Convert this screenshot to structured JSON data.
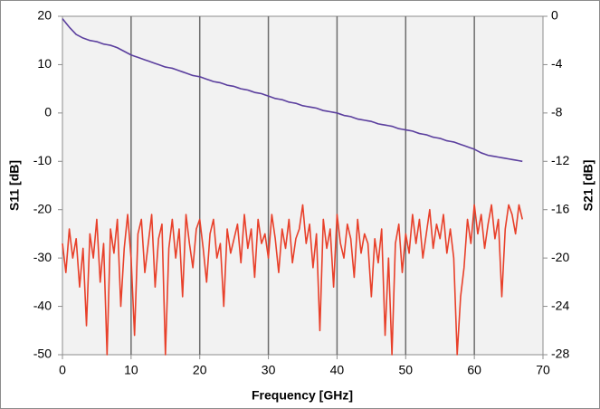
{
  "chart_data": {
    "type": "line",
    "xlabel": "Frequency [GHz]",
    "ylabel": "S11 [dB]",
    "y2label": "S21 [dB]",
    "x": [
      0,
      0.5,
      1,
      1.5,
      2,
      2.5,
      3,
      3.5,
      4,
      4.5,
      5,
      5.5,
      6,
      6.5,
      7,
      7.5,
      8,
      8.5,
      9,
      9.5,
      10,
      10.5,
      11,
      11.5,
      12,
      12.5,
      13,
      13.5,
      14,
      14.5,
      15,
      15.5,
      16,
      16.5,
      17,
      17.5,
      18,
      18.5,
      19,
      19.5,
      20,
      20.5,
      21,
      21.5,
      22,
      22.5,
      23,
      23.5,
      24,
      24.5,
      25,
      25.5,
      26,
      26.5,
      27,
      27.5,
      28,
      28.5,
      29,
      29.5,
      30,
      30.5,
      31,
      31.5,
      32,
      32.5,
      33,
      33.5,
      34,
      34.5,
      35,
      35.5,
      36,
      36.5,
      37,
      37.5,
      38,
      38.5,
      39,
      39.5,
      40,
      40.5,
      41,
      41.5,
      42,
      42.5,
      43,
      43.5,
      44,
      44.5,
      45,
      45.5,
      46,
      46.5,
      47,
      47.5,
      48,
      48.5,
      49,
      49.5,
      50,
      50.5,
      51,
      51.5,
      52,
      52.5,
      53,
      53.5,
      54,
      54.5,
      55,
      55.5,
      56,
      56.5,
      57,
      57.5,
      58,
      58.5,
      59,
      59.5,
      60,
      60.5,
      61,
      61.5,
      62,
      62.5,
      63,
      63.5,
      64,
      64.5,
      65,
      65.5,
      66,
      66.5,
      67
    ],
    "series": [
      {
        "name": "S11",
        "color": "#e8402a",
        "axis": "y",
        "values": [
          -27,
          -33,
          -24,
          -30,
          -26,
          -36,
          -28,
          -44,
          -25,
          -30,
          -22,
          -35,
          -27,
          -50,
          -24,
          -29,
          -22,
          -40,
          -28,
          -21,
          -30,
          -46,
          -25,
          -22,
          -33,
          -27,
          -21,
          -36,
          -26,
          -23,
          -50,
          -28,
          -22,
          -30,
          -24,
          -38,
          -21,
          -27,
          -32,
          -24,
          -22,
          -28,
          -35,
          -25,
          -22,
          -30,
          -27,
          -40,
          -24,
          -29,
          -26,
          -23,
          -31,
          -21,
          -28,
          -24,
          -34,
          -22,
          -27,
          -25,
          -30,
          -21,
          -26,
          -33,
          -24,
          -28,
          -22,
          -31,
          -26,
          -24,
          -19,
          -27,
          -23,
          -32,
          -25,
          -45,
          -22,
          -28,
          -24,
          -36,
          -21,
          -27,
          -30,
          -23,
          -26,
          -34,
          -22,
          -29,
          -25,
          -27,
          -38,
          -26,
          -31,
          -24,
          -46,
          -30,
          -50,
          -27,
          -23,
          -33,
          -25,
          -29,
          -21,
          -27,
          -22,
          -30,
          -25,
          -20,
          -28,
          -23,
          -26,
          -21,
          -29,
          -24,
          -30,
          -50,
          -38,
          -32,
          -22,
          -27,
          -19,
          -25,
          -21,
          -28,
          -23,
          -19,
          -26,
          -22,
          -38,
          -24,
          -19,
          -21,
          -25,
          -19,
          -22
        ]
      },
      {
        "name": "S21",
        "color": "#5b3f9e",
        "axis": "y2",
        "values": [
          -0.2,
          -0.55,
          -0.9,
          -1.2,
          -1.5,
          -1.65,
          -1.8,
          -1.9,
          -2.0,
          -2.05,
          -2.1,
          -2.2,
          -2.3,
          -2.35,
          -2.4,
          -2.5,
          -2.6,
          -2.75,
          -2.9,
          -3.05,
          -3.2,
          -3.3,
          -3.4,
          -3.5,
          -3.6,
          -3.7,
          -3.8,
          -3.9,
          -4.0,
          -4.1,
          -4.2,
          -4.25,
          -4.3,
          -4.4,
          -4.5,
          -4.6,
          -4.7,
          -4.8,
          -4.9,
          -4.95,
          -5.0,
          -5.1,
          -5.2,
          -5.3,
          -5.4,
          -5.45,
          -5.5,
          -5.6,
          -5.7,
          -5.75,
          -5.8,
          -5.9,
          -6.0,
          -6.05,
          -6.1,
          -6.2,
          -6.3,
          -6.35,
          -6.4,
          -6.5,
          -6.6,
          -6.7,
          -6.8,
          -6.85,
          -6.9,
          -7.0,
          -7.1,
          -7.15,
          -7.2,
          -7.3,
          -7.4,
          -7.45,
          -7.5,
          -7.55,
          -7.6,
          -7.7,
          -7.8,
          -7.85,
          -7.9,
          -7.95,
          -8.0,
          -8.1,
          -8.2,
          -8.25,
          -8.3,
          -8.4,
          -8.5,
          -8.55,
          -8.6,
          -8.65,
          -8.7,
          -8.8,
          -8.9,
          -8.95,
          -9.0,
          -9.05,
          -9.1,
          -9.2,
          -9.3,
          -9.35,
          -9.4,
          -9.45,
          -9.5,
          -9.6,
          -9.7,
          -9.75,
          -9.8,
          -9.9,
          -10.0,
          -10.05,
          -10.1,
          -10.2,
          -10.3,
          -10.35,
          -10.4,
          -10.5,
          -10.6,
          -10.7,
          -10.8,
          -10.9,
          -11.0,
          -11.15,
          -11.3,
          -11.4,
          -11.5,
          -11.55,
          -11.6,
          -11.65,
          -11.7,
          -11.75,
          -11.8,
          -11.85,
          -11.9,
          -11.95,
          -12.0
        ]
      }
    ],
    "xlim": [
      0,
      70
    ],
    "xticks": [
      0,
      10,
      20,
      30,
      40,
      50,
      60,
      70
    ],
    "ylim": [
      -50,
      20
    ],
    "yticks": [
      -50,
      -40,
      -30,
      -20,
      -10,
      0,
      10,
      20
    ],
    "y2lim": [
      -28,
      0
    ],
    "y2ticks": [
      -28,
      -24,
      -20,
      -16,
      -12,
      -8,
      -4,
      0
    ],
    "grid": "x"
  }
}
